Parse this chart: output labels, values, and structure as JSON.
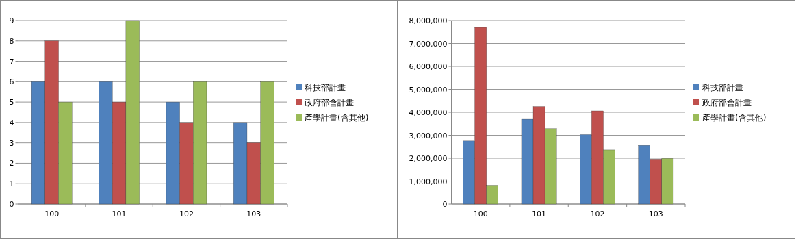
{
  "chart_data": [
    {
      "type": "bar",
      "categories": [
        "100",
        "101",
        "102",
        "103"
      ],
      "ylim": [
        0,
        9
      ],
      "yticks": [
        0,
        1,
        2,
        3,
        4,
        5,
        6,
        7,
        8,
        9
      ],
      "grid": "y",
      "legend": "right",
      "series": [
        {
          "name": "科技部計畫",
          "color": "#4f81bd",
          "values": [
            6,
            6,
            5,
            4
          ]
        },
        {
          "name": "政府部會計畫",
          "color": "#c0504d",
          "values": [
            8,
            5,
            4,
            3
          ]
        },
        {
          "name": "產學計畫(含其他)",
          "color": "#9bbb59",
          "values": [
            5,
            9,
            6,
            6
          ]
        }
      ]
    },
    {
      "type": "bar",
      "categories": [
        "100",
        "101",
        "102",
        "103"
      ],
      "ylim": [
        0,
        8000000
      ],
      "yticks": [
        {
          "value": 0,
          "label": "0"
        },
        {
          "value": 1000000,
          "label": "1,000,000"
        },
        {
          "value": 2000000,
          "label": "2,000,000"
        },
        {
          "value": 3000000,
          "label": "3,000,000"
        },
        {
          "value": 4000000,
          "label": "4,000,000"
        },
        {
          "value": 5000000,
          "label": "5,000,000"
        },
        {
          "value": 6000000,
          "label": "6,000,000"
        },
        {
          "value": 7000000,
          "label": "7,000,000"
        },
        {
          "value": 8000000,
          "label": "8,000,000"
        }
      ],
      "grid": "y",
      "legend": "right",
      "series": [
        {
          "name": "科技部計畫",
          "color": "#4f81bd",
          "values": [
            2750000,
            3700000,
            3030000,
            2560000
          ]
        },
        {
          "name": "政府部會計畫",
          "color": "#c0504d",
          "values": [
            7700000,
            4250000,
            4060000,
            1960000
          ]
        },
        {
          "name": "產學計畫(含其他)",
          "color": "#9bbb59",
          "values": [
            820000,
            3290000,
            2360000,
            1990000
          ]
        }
      ]
    }
  ]
}
